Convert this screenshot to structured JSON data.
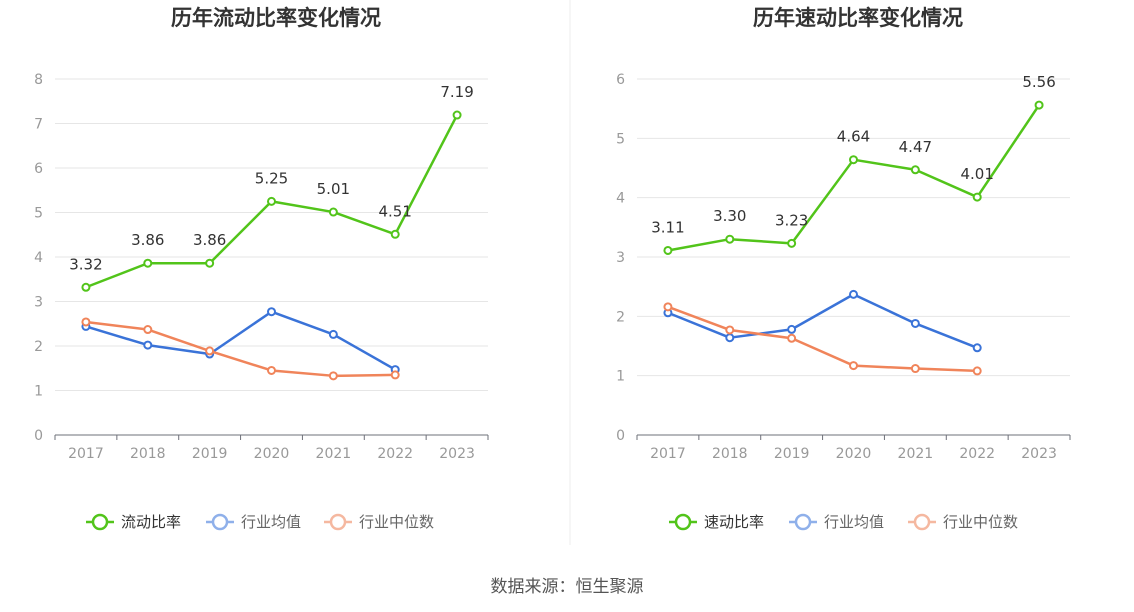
{
  "source_text": "数据来源：恒生聚源",
  "chart_data": [
    {
      "type": "line",
      "title": "历年流动比率变化情况",
      "categories": [
        "2017",
        "2018",
        "2019",
        "2020",
        "2021",
        "2022",
        "2023"
      ],
      "ylim": [
        0,
        8
      ],
      "yticks": [
        0,
        1,
        2,
        3,
        4,
        5,
        6,
        7,
        8
      ],
      "grid": true,
      "legend": "bottom",
      "series": [
        {
          "name": "流动比率",
          "color": "#52c41a",
          "values": [
            3.32,
            3.86,
            3.86,
            5.25,
            5.01,
            4.51,
            7.19
          ],
          "labels": [
            "3.32",
            "3.86",
            "3.86",
            "5.25",
            "5.01",
            "4.51",
            "7.19"
          ]
        },
        {
          "name": "行业均值",
          "color": "#3a73d8",
          "values": [
            2.44,
            2.02,
            1.82,
            2.77,
            2.26,
            1.47,
            null
          ]
        },
        {
          "name": "行业中位数",
          "color": "#f0845a",
          "values": [
            2.54,
            2.37,
            1.89,
            1.45,
            1.33,
            1.35,
            null
          ]
        }
      ]
    },
    {
      "type": "line",
      "title": "历年速动比率变化情况",
      "categories": [
        "2017",
        "2018",
        "2019",
        "2020",
        "2021",
        "2022",
        "2023"
      ],
      "ylim": [
        0,
        6
      ],
      "yticks": [
        0,
        1,
        2,
        3,
        4,
        5,
        6
      ],
      "grid": true,
      "legend": "bottom",
      "series": [
        {
          "name": "速动比率",
          "color": "#52c41a",
          "values": [
            3.11,
            3.3,
            3.23,
            4.64,
            4.47,
            4.01,
            5.56
          ],
          "labels": [
            "3.11",
            "3.30",
            "3.23",
            "4.64",
            "4.47",
            "4.01",
            "5.56"
          ]
        },
        {
          "name": "行业均值",
          "color": "#3a73d8",
          "values": [
            2.06,
            1.64,
            1.78,
            2.37,
            1.88,
            1.47,
            null
          ]
        },
        {
          "name": "行业中位数",
          "color": "#f0845a",
          "values": [
            2.16,
            1.77,
            1.63,
            1.17,
            1.12,
            1.08,
            null
          ]
        }
      ]
    }
  ]
}
